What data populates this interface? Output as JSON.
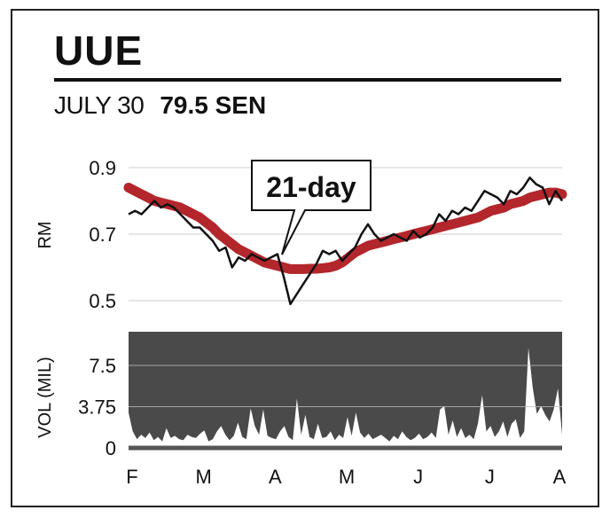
{
  "header": {
    "ticker": "UUE",
    "date": "JULY 30",
    "price": "79.5 SEN"
  },
  "colors": {
    "price_line": "#111111",
    "ma_line": "#b3262b",
    "volume_fill": "#4a4a4a",
    "grid": "#cccccc"
  },
  "chart_data": [
    {
      "type": "line",
      "ylabel": "RM",
      "ylim": [
        0.45,
        0.93
      ],
      "yticks": [
        "0.9",
        "0.7",
        "0.5"
      ],
      "annotation": "21-day",
      "grid": true,
      "series": [
        {
          "values": [
            0.76,
            0.77,
            0.76,
            0.78,
            0.8,
            0.78,
            0.79,
            0.78,
            0.76,
            0.74,
            0.72,
            0.72,
            0.7,
            0.68,
            0.65,
            0.66,
            0.6,
            0.63,
            0.62,
            0.64,
            0.63,
            0.62,
            0.63,
            0.64,
            0.57,
            0.49,
            0.52,
            0.55,
            0.58,
            0.61,
            0.65,
            0.64,
            0.65,
            0.62,
            0.64,
            0.66,
            0.7,
            0.73,
            0.7,
            0.68,
            0.69,
            0.7,
            0.69,
            0.68,
            0.71,
            0.69,
            0.7,
            0.72,
            0.76,
            0.74,
            0.77,
            0.76,
            0.78,
            0.77,
            0.8,
            0.83,
            0.82,
            0.81,
            0.79,
            0.83,
            0.82,
            0.84,
            0.87,
            0.85,
            0.84,
            0.79,
            0.83,
            0.8
          ]
        },
        {
          "values": [
            0.84,
            0.83,
            0.82,
            0.81,
            0.8,
            0.795,
            0.79,
            0.785,
            0.78,
            0.77,
            0.76,
            0.75,
            0.735,
            0.72,
            0.7,
            0.685,
            0.67,
            0.655,
            0.645,
            0.635,
            0.625,
            0.615,
            0.61,
            0.605,
            0.6,
            0.595,
            0.595,
            0.595,
            0.596,
            0.596,
            0.598,
            0.6,
            0.605,
            0.615,
            0.63,
            0.645,
            0.655,
            0.665,
            0.67,
            0.675,
            0.68,
            0.685,
            0.69,
            0.695,
            0.7,
            0.705,
            0.71,
            0.715,
            0.72,
            0.725,
            0.73,
            0.735,
            0.74,
            0.745,
            0.75,
            0.76,
            0.77,
            0.775,
            0.78,
            0.79,
            0.795,
            0.8,
            0.81,
            0.815,
            0.82,
            0.825,
            0.825,
            0.82
          ]
        }
      ]
    },
    {
      "type": "area",
      "ylabel": "VOL (MIL)",
      "ylim": [
        0,
        10
      ],
      "yticks": [
        "7.5",
        "3.75",
        "0"
      ],
      "xticks": [
        "F",
        "M",
        "A",
        "M",
        "J",
        "J",
        "A"
      ],
      "grid": true,
      "series": [
        {
          "values": [
            3.2,
            1.5,
            0.8,
            1.2,
            0.9,
            1.4,
            0.7,
            1.0,
            0.6,
            1.8,
            0.9,
            1.1,
            0.8,
            0.7,
            1.2,
            1.0,
            0.9,
            1.3,
            1.6,
            0.6,
            0.8,
            1.5,
            2.0,
            1.2,
            0.7,
            1.1,
            2.3,
            1.0,
            0.8,
            3.6,
            2.0,
            1.2,
            3.5,
            1.1,
            0.9,
            0.8,
            1.5,
            2.0,
            1.0,
            0.7,
            4.5,
            1.2,
            3.0,
            1.0,
            0.8,
            2.2,
            0.9,
            1.0,
            1.5,
            0.7,
            1.2,
            0.9,
            2.8,
            1.1,
            3.2,
            1.4,
            0.9,
            1.3,
            0.8,
            1.0,
            1.2,
            0.9,
            0.6,
            1.1,
            0.8,
            1.5,
            1.0,
            0.7,
            0.9,
            1.3,
            0.8,
            1.0,
            1.4,
            0.9,
            3.5,
            3.8,
            1.2,
            2.5,
            1.0,
            1.8,
            0.9,
            1.2,
            0.8,
            2.2,
            4.8,
            1.5,
            2.0,
            1.0,
            1.5,
            2.4,
            1.0,
            2.2,
            2.6,
            0.9,
            1.5,
            9.1,
            5.5,
            3.1,
            3.8,
            3.0,
            2.4,
            3.5,
            5.4,
            1.2
          ]
        }
      ]
    }
  ]
}
